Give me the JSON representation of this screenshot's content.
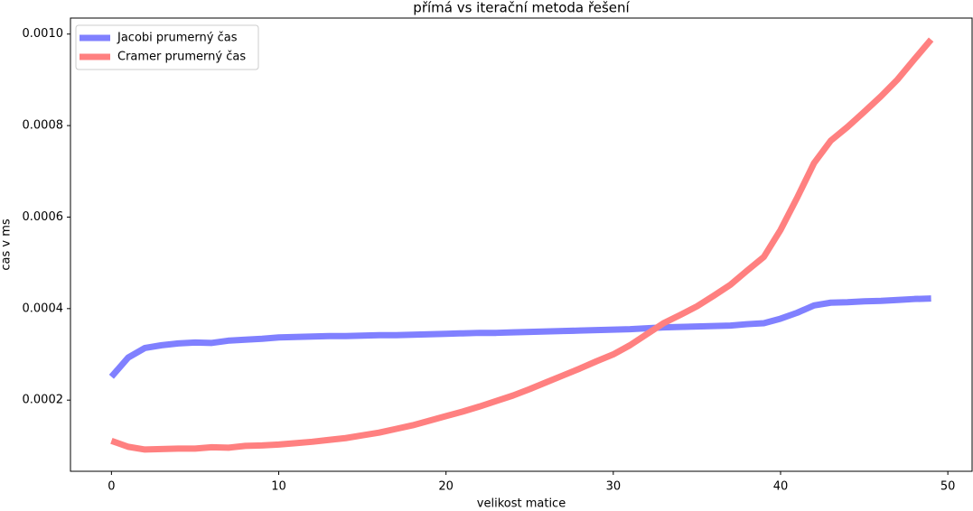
{
  "chart_data": {
    "type": "line",
    "title": "přímá vs iterační metoda řešení",
    "xlabel": "velikost matice",
    "ylabel": "cas v ms",
    "x": [
      0,
      1,
      2,
      3,
      4,
      5,
      6,
      7,
      8,
      9,
      10,
      11,
      12,
      13,
      14,
      15,
      16,
      17,
      18,
      19,
      20,
      21,
      22,
      23,
      24,
      25,
      26,
      27,
      28,
      29,
      30,
      31,
      32,
      33,
      34,
      35,
      36,
      37,
      38,
      39,
      40,
      41,
      42,
      43,
      44,
      45,
      46,
      47,
      48,
      49
    ],
    "series": [
      {
        "name": "Jacobi prumerný čas",
        "color": "#8080ff",
        "values": [
          0.000251,
          0.000293,
          0.000314,
          0.00032,
          0.000324,
          0.000326,
          0.000325,
          0.00033,
          0.000332,
          0.000334,
          0.000337,
          0.000338,
          0.000339,
          0.00034,
          0.00034,
          0.000341,
          0.000342,
          0.000342,
          0.000343,
          0.000344,
          0.000345,
          0.000346,
          0.000347,
          0.000347,
          0.000348,
          0.000349,
          0.00035,
          0.000351,
          0.000352,
          0.000353,
          0.000354,
          0.000355,
          0.000357,
          0.000359,
          0.00036,
          0.000361,
          0.000362,
          0.000363,
          0.000366,
          0.000368,
          0.000378,
          0.000391,
          0.000407,
          0.000413,
          0.000414,
          0.000416,
          0.000417,
          0.000419,
          0.000421,
          0.000422
        ]
      },
      {
        "name": "Cramer prumerný čas",
        "color": "#ff8080",
        "values": [
          0.000111,
          9.8e-05,
          9.2e-05,
          9.3e-05,
          9.4e-05,
          9.4e-05,
          9.7e-05,
          9.6e-05,
          0.0001,
          0.000101,
          0.000103,
          0.000106,
          0.000109,
          0.000113,
          0.000117,
          0.000123,
          0.000129,
          0.000137,
          0.000145,
          0.000155,
          0.000165,
          0.000175,
          0.000186,
          0.000198,
          0.00021,
          0.000224,
          0.000239,
          0.000254,
          0.000269,
          0.000285,
          0.0003,
          0.00032,
          0.000344,
          0.000368,
          0.000386,
          0.000405,
          0.000428,
          0.000452,
          0.000483,
          0.000513,
          0.000572,
          0.000643,
          0.000718,
          0.000767,
          0.000797,
          0.00083,
          0.000864,
          0.000901,
          0.000945,
          0.000988
        ]
      }
    ],
    "xlim": [
      -2.45,
      51.45
    ],
    "xticks": [
      0,
      10,
      20,
      30,
      40,
      50
    ],
    "ylim": [
      4.45e-05,
      0.001035
    ],
    "yticks": [
      0.0002,
      0.0004,
      0.0006,
      0.0008,
      {
        "value": 0.001,
        "label": "0.0010"
      }
    ],
    "grid": false,
    "legend": "upper left"
  }
}
